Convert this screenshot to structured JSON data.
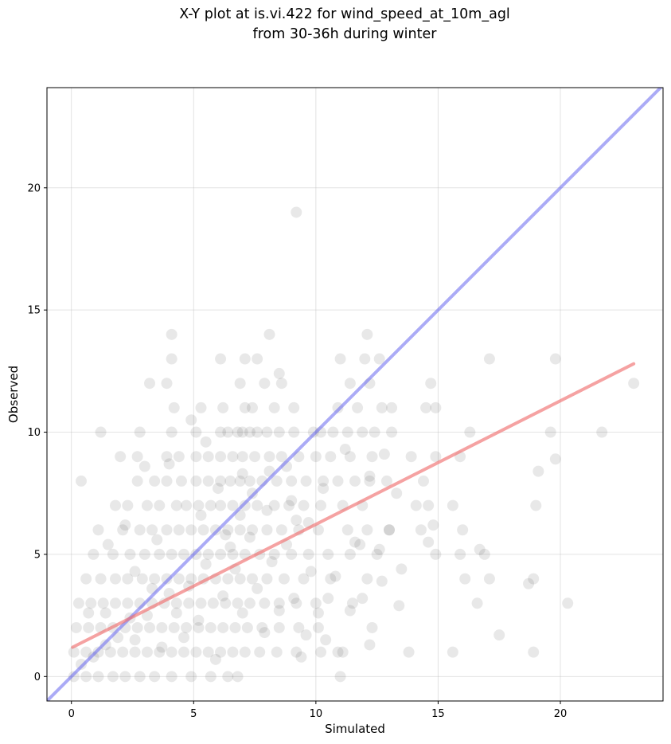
{
  "chart_data": {
    "type": "scatter",
    "title": "X-Y plot at is.vi.422 for wind_speed_at_10m_agl",
    "subtitle": "from 30-36h during winter",
    "xlabel": "Simulated",
    "ylabel": "Observed",
    "xlim": [
      -1,
      24.2
    ],
    "ylim": [
      -1,
      24.1
    ],
    "xticks": [
      "0",
      "5",
      "10",
      "15",
      "20"
    ],
    "yticks": [
      "0",
      "5",
      "10",
      "15",
      "20"
    ],
    "grid": true,
    "point_color": "#000000",
    "point_alpha": 0.09,
    "reference_line": {
      "color": "#6666ee",
      "alpha": 0.55,
      "x": [
        -1,
        24.2
      ],
      "y": [
        -1,
        24.2
      ]
    },
    "fit_line": {
      "color": "#f07070",
      "alpha": 0.65,
      "x": [
        0.05,
        23.0
      ],
      "y": [
        1.2,
        12.8
      ]
    },
    "points": [
      [
        9.2,
        19
      ],
      [
        4.1,
        14
      ],
      [
        8.1,
        14
      ],
      [
        12.1,
        14
      ],
      [
        4.1,
        13
      ],
      [
        6.1,
        13
      ],
      [
        7.1,
        13
      ],
      [
        7.6,
        13
      ],
      [
        11.0,
        13
      ],
      [
        12.0,
        13
      ],
      [
        12.6,
        13
      ],
      [
        17.1,
        13
      ],
      [
        19.8,
        13
      ],
      [
        3.2,
        12
      ],
      [
        3.9,
        12
      ],
      [
        6.9,
        12
      ],
      [
        7.9,
        12
      ],
      [
        8.6,
        12
      ],
      [
        11.4,
        12
      ],
      [
        12.2,
        12
      ],
      [
        14.7,
        12
      ],
      [
        23.0,
        12
      ],
      [
        8.5,
        12.4
      ],
      [
        4.2,
        11
      ],
      [
        5.3,
        11
      ],
      [
        6.2,
        11
      ],
      [
        7.1,
        11
      ],
      [
        7.4,
        11
      ],
      [
        8.3,
        11
      ],
      [
        9.1,
        11
      ],
      [
        10.9,
        11
      ],
      [
        11.7,
        11
      ],
      [
        12.7,
        11
      ],
      [
        13.1,
        11
      ],
      [
        14.5,
        11
      ],
      [
        14.9,
        11
      ],
      [
        1.2,
        10
      ],
      [
        2.8,
        10
      ],
      [
        4.1,
        10
      ],
      [
        5.1,
        10
      ],
      [
        6.1,
        10
      ],
      [
        6.4,
        10
      ],
      [
        6.8,
        10
      ],
      [
        7.0,
        10
      ],
      [
        7.3,
        10
      ],
      [
        7.6,
        10
      ],
      [
        8.0,
        10
      ],
      [
        8.5,
        10
      ],
      [
        9.1,
        10
      ],
      [
        9.9,
        10
      ],
      [
        10.2,
        10
      ],
      [
        10.7,
        10
      ],
      [
        11.3,
        10
      ],
      [
        11.9,
        10
      ],
      [
        12.4,
        10
      ],
      [
        13.1,
        10
      ],
      [
        16.3,
        10
      ],
      [
        19.6,
        10
      ],
      [
        21.7,
        10
      ],
      [
        2.0,
        9
      ],
      [
        2.7,
        9
      ],
      [
        3.9,
        9
      ],
      [
        4.4,
        9
      ],
      [
        5.1,
        9
      ],
      [
        5.6,
        9
      ],
      [
        6.1,
        9
      ],
      [
        6.6,
        9
      ],
      [
        7.0,
        9
      ],
      [
        7.5,
        9
      ],
      [
        8.1,
        9
      ],
      [
        8.6,
        9
      ],
      [
        9.3,
        9
      ],
      [
        10.0,
        9
      ],
      [
        10.6,
        9
      ],
      [
        11.4,
        9
      ],
      [
        12.3,
        9
      ],
      [
        13.9,
        9
      ],
      [
        14.9,
        9
      ],
      [
        15.9,
        9
      ],
      [
        19.8,
        8.9
      ],
      [
        12.8,
        9.1
      ],
      [
        0.4,
        8
      ],
      [
        2.7,
        8
      ],
      [
        3.4,
        8
      ],
      [
        3.9,
        8
      ],
      [
        4.5,
        8
      ],
      [
        5.1,
        8
      ],
      [
        5.6,
        8
      ],
      [
        6.1,
        8
      ],
      [
        6.5,
        8
      ],
      [
        6.9,
        8
      ],
      [
        7.3,
        8
      ],
      [
        7.8,
        8
      ],
      [
        8.4,
        8
      ],
      [
        9.0,
        8
      ],
      [
        9.6,
        8
      ],
      [
        10.3,
        8
      ],
      [
        10.9,
        8
      ],
      [
        11.6,
        8
      ],
      [
        12.2,
        8
      ],
      [
        12.9,
        8
      ],
      [
        14.4,
        8
      ],
      [
        19.1,
        8.4
      ],
      [
        8.1,
        8.4
      ],
      [
        1.8,
        7
      ],
      [
        2.3,
        7
      ],
      [
        3.1,
        7
      ],
      [
        3.6,
        7
      ],
      [
        4.3,
        7
      ],
      [
        4.7,
        7
      ],
      [
        5.2,
        7
      ],
      [
        5.7,
        7
      ],
      [
        6.1,
        7
      ],
      [
        6.6,
        7
      ],
      [
        7.1,
        7
      ],
      [
        7.6,
        7
      ],
      [
        8.3,
        7
      ],
      [
        8.9,
        7
      ],
      [
        9.5,
        7
      ],
      [
        10.2,
        7
      ],
      [
        11.1,
        7
      ],
      [
        11.9,
        7
      ],
      [
        14.1,
        7
      ],
      [
        14.6,
        7
      ],
      [
        15.6,
        7
      ],
      [
        19.0,
        7
      ],
      [
        13.3,
        7.5
      ],
      [
        9.2,
        6.4
      ],
      [
        1.1,
        6
      ],
      [
        2.1,
        6
      ],
      [
        2.8,
        6
      ],
      [
        3.3,
        6
      ],
      [
        3.9,
        6
      ],
      [
        4.4,
        6
      ],
      [
        4.9,
        6
      ],
      [
        5.4,
        6
      ],
      [
        5.9,
        6
      ],
      [
        6.4,
        6
      ],
      [
        6.9,
        6
      ],
      [
        7.4,
        6
      ],
      [
        8.0,
        6
      ],
      [
        8.6,
        6
      ],
      [
        9.3,
        6
      ],
      [
        10.1,
        6
      ],
      [
        11.3,
        6
      ],
      [
        12.1,
        6
      ],
      [
        13.0,
        6
      ],
      [
        14.3,
        6
      ],
      [
        16.0,
        6
      ],
      [
        14.8,
        6.2
      ],
      [
        11.8,
        5.4
      ],
      [
        0.9,
        5
      ],
      [
        1.7,
        5
      ],
      [
        2.4,
        5
      ],
      [
        3.0,
        5
      ],
      [
        3.6,
        5
      ],
      [
        4.1,
        5
      ],
      [
        4.6,
        5
      ],
      [
        5.1,
        5
      ],
      [
        5.6,
        5
      ],
      [
        6.1,
        5
      ],
      [
        6.6,
        5
      ],
      [
        7.1,
        5
      ],
      [
        7.7,
        5
      ],
      [
        8.3,
        5
      ],
      [
        9.0,
        5
      ],
      [
        9.7,
        5
      ],
      [
        10.5,
        5
      ],
      [
        11.4,
        5
      ],
      [
        12.5,
        5
      ],
      [
        14.9,
        5
      ],
      [
        15.9,
        5
      ],
      [
        16.9,
        5
      ],
      [
        14.6,
        5.5
      ],
      [
        16.7,
        5.2
      ],
      [
        18.9,
        4
      ],
      [
        17.1,
        4
      ],
      [
        16.1,
        4
      ],
      [
        13.5,
        4.4
      ],
      [
        0.6,
        4
      ],
      [
        1.2,
        4
      ],
      [
        1.8,
        4
      ],
      [
        2.3,
        4
      ],
      [
        2.9,
        4
      ],
      [
        3.4,
        4
      ],
      [
        3.9,
        4
      ],
      [
        4.4,
        4
      ],
      [
        4.9,
        4
      ],
      [
        5.4,
        4
      ],
      [
        5.9,
        4
      ],
      [
        6.4,
        4
      ],
      [
        6.9,
        4
      ],
      [
        7.4,
        4
      ],
      [
        8.0,
        4
      ],
      [
        8.7,
        4
      ],
      [
        9.5,
        4
      ],
      [
        10.6,
        4
      ],
      [
        12.1,
        4
      ],
      [
        12.7,
        3.9
      ],
      [
        18.7,
        3.8
      ],
      [
        0.3,
        3
      ],
      [
        0.8,
        3
      ],
      [
        1.3,
        3
      ],
      [
        1.8,
        3
      ],
      [
        2.3,
        3
      ],
      [
        2.8,
        3
      ],
      [
        3.3,
        3
      ],
      [
        3.8,
        3
      ],
      [
        4.3,
        3
      ],
      [
        4.8,
        3
      ],
      [
        5.3,
        3
      ],
      [
        5.8,
        3
      ],
      [
        6.3,
        3
      ],
      [
        6.8,
        3
      ],
      [
        7.3,
        3
      ],
      [
        7.9,
        3
      ],
      [
        8.5,
        3
      ],
      [
        9.2,
        3
      ],
      [
        10.0,
        3
      ],
      [
        11.5,
        3
      ],
      [
        16.6,
        3
      ],
      [
        20.3,
        3
      ],
      [
        13.4,
        2.9
      ],
      [
        11.4,
        2.7
      ],
      [
        0.2,
        2
      ],
      [
        0.7,
        2
      ],
      [
        1.2,
        2
      ],
      [
        1.7,
        2
      ],
      [
        2.2,
        2
      ],
      [
        2.7,
        2
      ],
      [
        3.2,
        2
      ],
      [
        3.7,
        2
      ],
      [
        4.2,
        2
      ],
      [
        4.7,
        2
      ],
      [
        5.2,
        2
      ],
      [
        5.7,
        2
      ],
      [
        6.2,
        2
      ],
      [
        6.7,
        2
      ],
      [
        7.2,
        2
      ],
      [
        7.8,
        2
      ],
      [
        8.5,
        2
      ],
      [
        9.3,
        2
      ],
      [
        10.1,
        2
      ],
      [
        12.3,
        2
      ],
      [
        9.6,
        1.7
      ],
      [
        17.5,
        1.7
      ],
      [
        0.1,
        1
      ],
      [
        0.6,
        1
      ],
      [
        1.1,
        1
      ],
      [
        1.6,
        1
      ],
      [
        2.1,
        1
      ],
      [
        2.6,
        1
      ],
      [
        3.1,
        1
      ],
      [
        3.6,
        1
      ],
      [
        4.1,
        1
      ],
      [
        4.6,
        1
      ],
      [
        5.1,
        1
      ],
      [
        5.6,
        1
      ],
      [
        6.1,
        1
      ],
      [
        6.6,
        1
      ],
      [
        7.1,
        1
      ],
      [
        7.7,
        1
      ],
      [
        8.4,
        1
      ],
      [
        9.2,
        1
      ],
      [
        10.2,
        1
      ],
      [
        10.9,
        1
      ],
      [
        11.1,
        1
      ],
      [
        13.8,
        1
      ],
      [
        15.6,
        1
      ],
      [
        18.9,
        1
      ],
      [
        12.2,
        1.3
      ],
      [
        10.4,
        1.5
      ],
      [
        0.1,
        0
      ],
      [
        0.6,
        0
      ],
      [
        1.1,
        0
      ],
      [
        1.7,
        0
      ],
      [
        2.2,
        0
      ],
      [
        2.8,
        0
      ],
      [
        3.4,
        0
      ],
      [
        4.1,
        0
      ],
      [
        4.9,
        0
      ],
      [
        5.7,
        0
      ],
      [
        6.4,
        0
      ],
      [
        6.8,
        0
      ],
      [
        11.0,
        0
      ],
      [
        0.4,
        0.5
      ],
      [
        0.9,
        0.8
      ],
      [
        1.4,
        1.3
      ],
      [
        1.9,
        1.6
      ],
      [
        2.4,
        2.4
      ],
      [
        2.6,
        1.5
      ],
      [
        3.1,
        2.5
      ],
      [
        3.3,
        3.6
      ],
      [
        3.7,
        1.2
      ],
      [
        4.0,
        3.4
      ],
      [
        4.3,
        2.6
      ],
      [
        4.6,
        1.6
      ],
      [
        4.8,
        3.7
      ],
      [
        5.2,
        2.3
      ],
      [
        5.5,
        4.6
      ],
      [
        5.9,
        0.7
      ],
      [
        6.2,
        3.3
      ],
      [
        6.5,
        5.3
      ],
      [
        6.7,
        4.4
      ],
      [
        7.0,
        2.6
      ],
      [
        7.3,
        5.7
      ],
      [
        7.6,
        3.6
      ],
      [
        7.9,
        1.8
      ],
      [
        8.2,
        4.7
      ],
      [
        8.5,
        2.7
      ],
      [
        8.8,
        5.4
      ],
      [
        9.1,
        3.2
      ],
      [
        9.4,
        0.8
      ],
      [
        9.8,
        4.3
      ],
      [
        10.1,
        2.6
      ],
      [
        10.3,
        7.7
      ],
      [
        10.5,
        3.2
      ],
      [
        10.8,
        4.1
      ],
      [
        11.2,
        9.3
      ],
      [
        11.6,
        5.5
      ],
      [
        11.9,
        3.2
      ],
      [
        12.2,
        8.2
      ],
      [
        12.6,
        5.2
      ],
      [
        13.0,
        6.0
      ],
      [
        2.2,
        6.2
      ],
      [
        1.5,
        5.4
      ],
      [
        2.6,
        4.3
      ],
      [
        3.5,
        5.6
      ],
      [
        0.7,
        2.6
      ],
      [
        1.4,
        2.6
      ],
      [
        5.3,
        6.6
      ],
      [
        6.0,
        7.7
      ],
      [
        7.0,
        8.3
      ],
      [
        8.0,
        6.8
      ],
      [
        9.0,
        7.2
      ],
      [
        9.7,
        6.3
      ],
      [
        3.0,
        8.6
      ],
      [
        4.0,
        8.7
      ],
      [
        4.9,
        10.5
      ],
      [
        5.5,
        9.6
      ],
      [
        6.3,
        5.8
      ],
      [
        6.9,
        6.6
      ],
      [
        7.4,
        7.5
      ],
      [
        8.8,
        8.6
      ]
    ]
  }
}
